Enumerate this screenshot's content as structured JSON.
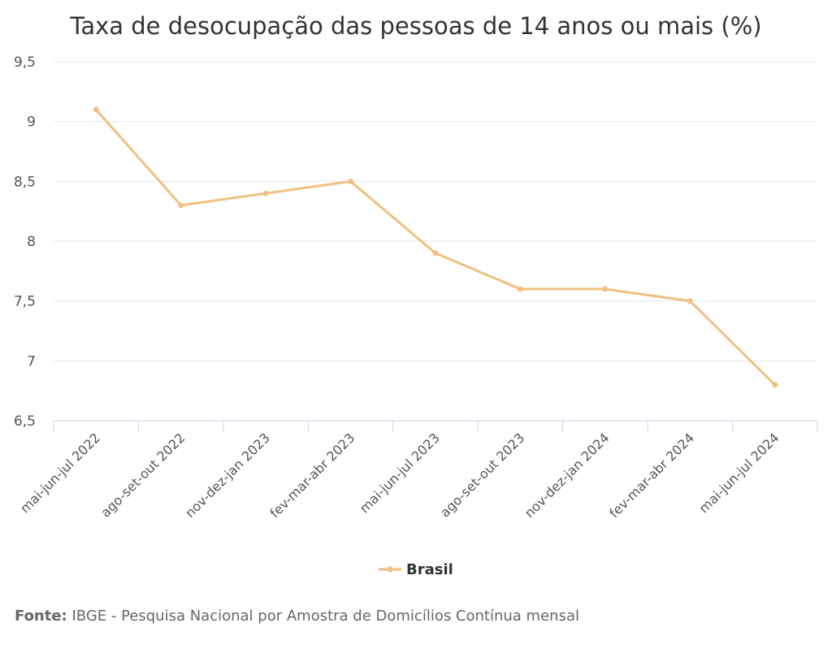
{
  "chart_data": {
    "type": "line",
    "title": "Taxa de desocupação das pessoas de 14 anos ou mais (%)",
    "categories": [
      "mai-jun-jul 2022",
      "ago-set-out 2022",
      "nov-dez-jan 2023",
      "fev-mar-abr 2023",
      "mai-jun-jul 2023",
      "ago-set-out 2023",
      "nov-dez-jan 2024",
      "fev-mar-abr 2024",
      "mai-jun-jul 2024"
    ],
    "series": [
      {
        "name": "Brasil",
        "values": [
          9.1,
          8.3,
          8.4,
          8.5,
          7.9,
          7.6,
          7.6,
          7.5,
          6.8
        ],
        "color": "#f0c080"
      }
    ],
    "ylim": [
      6.5,
      9.5
    ],
    "yticks": [
      "6,5",
      "7",
      "7,5",
      "8",
      "8,5",
      "9",
      "9,5"
    ],
    "ytick_values": [
      6.5,
      7,
      7.5,
      8,
      8.5,
      9,
      9.5
    ],
    "grid": true,
    "legend": "bottom-center"
  },
  "footer": {
    "label": "Fonte:",
    "text": " IBGE - Pesquisa Nacional por Amostra de Domicílios Contínua mensal"
  }
}
